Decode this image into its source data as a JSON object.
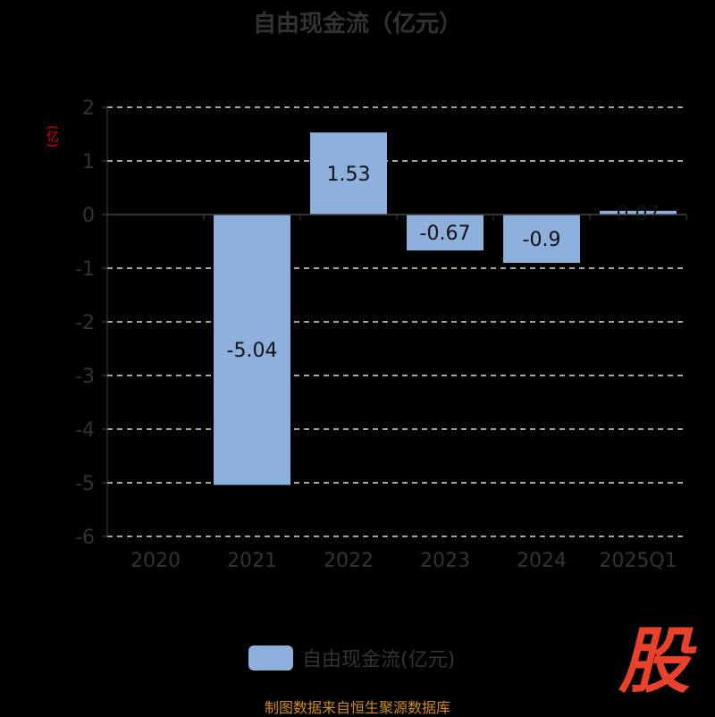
{
  "title": "自由现金流（亿元）",
  "unit_label": "(亿)",
  "legend_label": "自由现金流(亿元)",
  "logo_text": "股",
  "source": "制图数据来自恒生聚源数据库",
  "colors": {
    "bar": "#8eb0dc",
    "unit": "#ee0000",
    "source": "#d08a1e",
    "logo": "#e8412c"
  },
  "chart_data": {
    "type": "bar",
    "title": "自由现金流（亿元）",
    "ylabel": "(亿)",
    "categories": [
      "2020",
      "2021",
      "2022",
      "2023",
      "2024",
      "2025Q1"
    ],
    "series": [
      {
        "name": "自由现金流(亿元)",
        "values": [
          0.0,
          -5.04,
          1.53,
          -0.67,
          -0.9,
          0.07
        ]
      }
    ],
    "labels": [
      "",
      "-5.04",
      "1.53",
      "-0.67",
      "-0.9",
      "0.07"
    ],
    "yticks": [
      2,
      1,
      0,
      -1,
      -2,
      -3,
      -4,
      -5,
      -6
    ],
    "ylim": [
      -6,
      2
    ],
    "grid": true,
    "legend": "bottom"
  }
}
